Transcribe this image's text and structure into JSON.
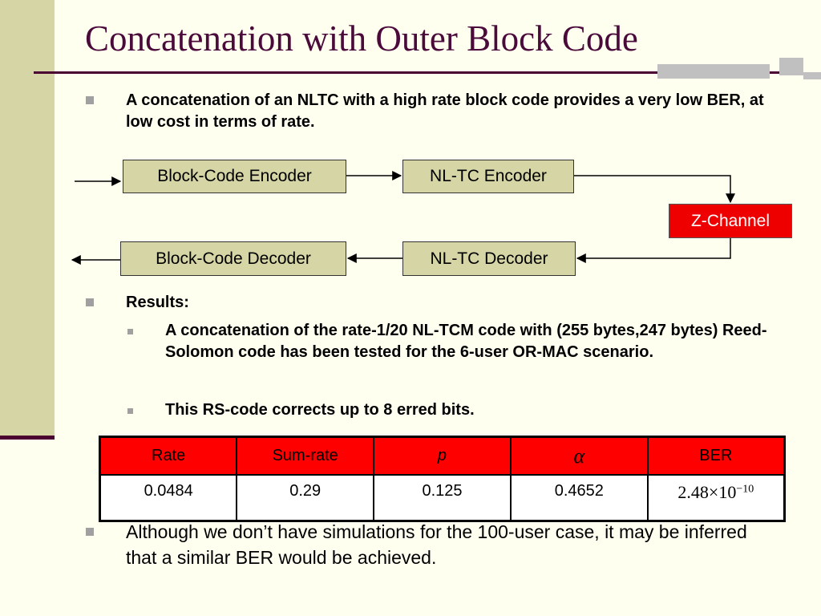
{
  "slide": {
    "title": "Concatenation with Outer Block Code"
  },
  "bullets": {
    "intro": "A concatenation of an NLTC with a high rate block code provides a very low BER, at low cost in terms of rate.",
    "results_heading": "Results:",
    "results_sub1": "A concatenation of the rate-1/20 NL-TCM code with (255 bytes,247 bytes) Reed-Solomon code has been tested for the 6-user OR-MAC scenario.",
    "results_sub2": "This RS-code corrects up to 8 erred bits.",
    "closing": "Although we don’t have simulations for the 100-user case, it may be inferred that a similar BER would be achieved."
  },
  "diagram": {
    "block_encoder": "Block-Code Encoder",
    "nltc_encoder": "NL-TC Encoder",
    "channel": "Z-Channel",
    "nltc_decoder": "NL-TC Decoder",
    "block_decoder": "Block-Code Decoder"
  },
  "table": {
    "headers": [
      "Rate",
      "Sum-rate",
      "p",
      "α",
      "BER"
    ],
    "row": [
      "0.0484",
      "0.29",
      "0.125",
      "0.4652"
    ],
    "ber_mantissa": "2.48×10",
    "ber_exponent": "−10"
  },
  "colors": {
    "title": "#4a0a3a",
    "background": "#fffff0",
    "sidebar": "#d5d5a5",
    "box_fill": "#d5d5a5",
    "channel_fill": "#ee0000",
    "table_header": "#ff0000"
  }
}
